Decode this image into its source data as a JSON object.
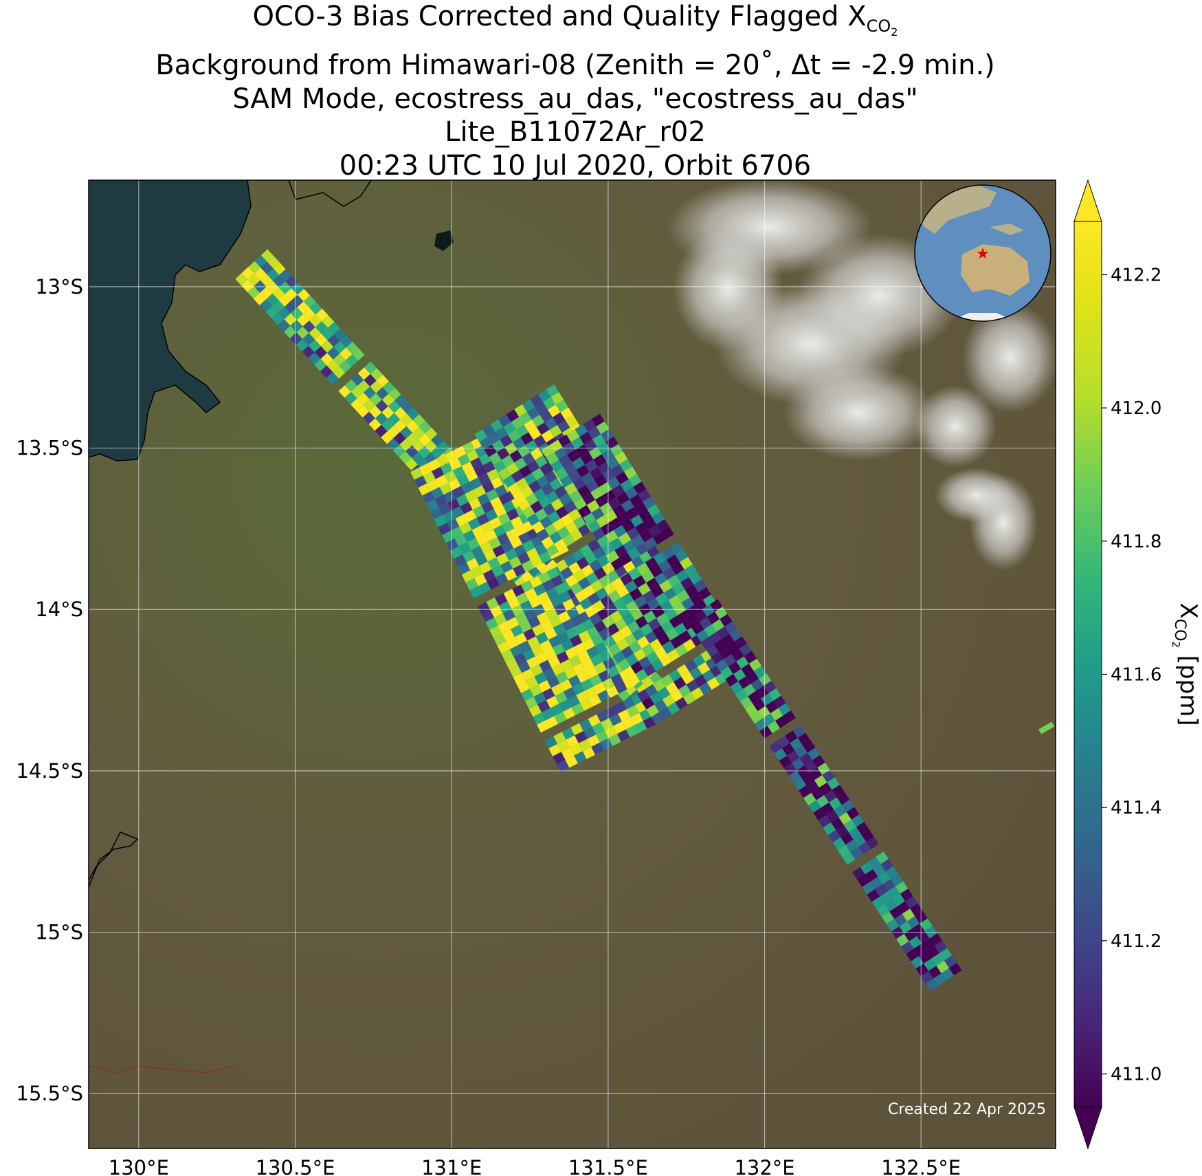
{
  "title": {
    "line1_prefix": "OCO-3 Bias Corrected and Quality Flagged X",
    "line1_sub": "CO",
    "line1_subsub": "2",
    "line2": "Background from Himawari-08 (Zenith = 20˚, Δt = -2.9 min.)",
    "line3": "SAM Mode, ecostress_au_das, \"ecostress_au_das\"",
    "line4": "Lite_B11072Ar_r02",
    "line5": "00:23 UTC 10 Jul 2020, Orbit 6706"
  },
  "map": {
    "lon_range": [
      129.84,
      132.93
    ],
    "lat_range": [
      -15.67,
      -12.67
    ],
    "lon_ticks": [
      130,
      130.5,
      131,
      131.5,
      132,
      132.5
    ],
    "lat_ticks": [
      -13,
      -13.5,
      -14,
      -14.5,
      -15,
      -15.5
    ],
    "lon_tick_labels": [
      "130°E",
      "130.5°E",
      "131°E",
      "131.5°E",
      "132°E",
      "132.5°E"
    ],
    "lat_tick_labels": [
      "13°S",
      "13.5°S",
      "14°S",
      "14.5°S",
      "15°S",
      "15.5°S"
    ],
    "gridlines": true,
    "created_text": "Created 22 Apr 2025",
    "inset": "globe-locator-australia",
    "colors": {
      "land": "#5f5a3d",
      "ocean": "#1e3a40",
      "cloud": "#e8e8e8"
    }
  },
  "chart_data": {
    "type": "heatmap",
    "variable": "XCO2",
    "units": "ppm",
    "colormap": "viridis",
    "vmin": 410.95,
    "vmax": 412.28,
    "extend": "both",
    "swaths": [
      {
        "start": [
          130.36,
          -12.93
        ],
        "end": [
          131.64,
          -14.28
        ],
        "width_deg": 0.14,
        "mean_ppm": 411.8
      },
      {
        "start": [
          131.02,
          -13.5
        ],
        "end": [
          131.5,
          -14.43
        ],
        "width_deg": 0.34,
        "mean_ppm": 411.8
      },
      {
        "start": [
          131.2,
          -13.38
        ],
        "end": [
          131.78,
          -14.28
        ],
        "width_deg": 0.3,
        "mean_ppm": 411.7
      },
      {
        "start": [
          131.38,
          -13.45
        ],
        "end": [
          131.78,
          -14.08
        ],
        "width_deg": 0.22,
        "mean_ppm": 411.3
      },
      {
        "start": [
          131.8,
          -14.0
        ],
        "end": [
          132.58,
          -15.15
        ],
        "width_deg": 0.12,
        "mean_ppm": 411.2
      }
    ],
    "outlier_point": {
      "lon": 132.9,
      "lat": -14.37,
      "ppm": 411.9
    }
  },
  "colorbar": {
    "ticks": [
      411.0,
      411.2,
      411.4,
      411.6,
      411.8,
      412.0,
      412.2
    ],
    "tick_labels": [
      "411.0",
      "411.2",
      "411.4",
      "411.6",
      "411.8",
      "412.0",
      "412.2"
    ],
    "label_prefix": "X",
    "label_sub": "CO",
    "label_subsub": "2",
    "label_suffix": " [ppm]"
  }
}
